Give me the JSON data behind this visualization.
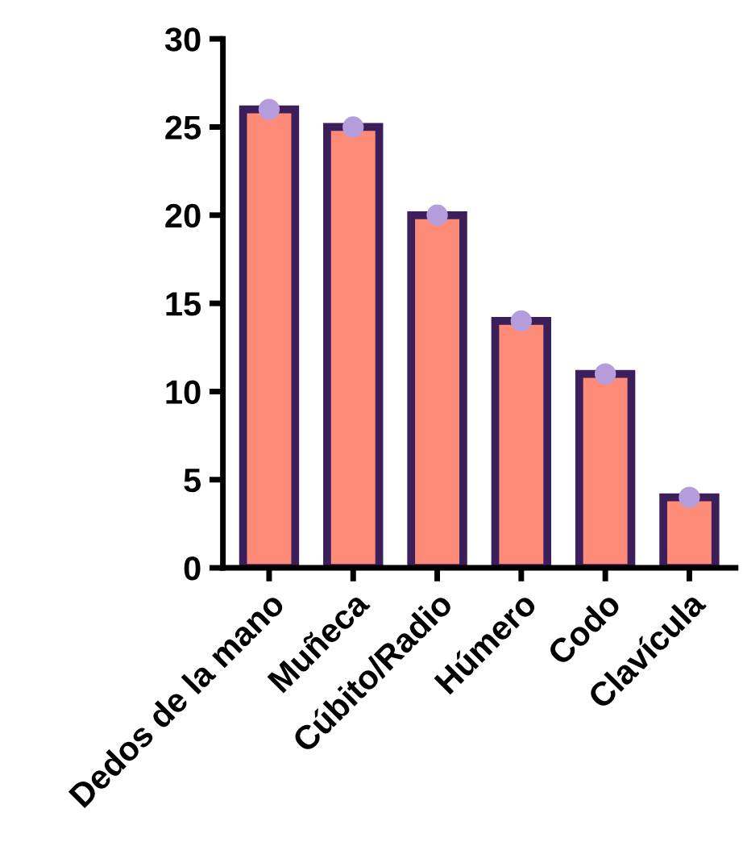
{
  "chart_data": {
    "type": "bar",
    "categories": [
      "Dedos de la mano",
      "Muñeca",
      "Cúbito/Radio",
      "Húmero",
      "Codo",
      "Clavícula"
    ],
    "series": [
      {
        "color": "#fd8b78",
        "values": [
          26,
          25,
          20,
          14,
          11,
          4
        ]
      },
      {
        "type": "scatter",
        "color": "#b59ddb",
        "x": [
          "Dedos de la mano",
          "Muñeca",
          "Cúbito/Radio",
          "Húmero",
          "Codo",
          "Clavícula"
        ],
        "values": [
          26,
          25,
          20,
          14,
          11,
          4
        ]
      }
    ],
    "ylim": [
      0,
      30
    ],
    "yticks": [
      0,
      5,
      10,
      15,
      20,
      25,
      30
    ],
    "grid": false,
    "legend": false,
    "marker": "circle"
  }
}
